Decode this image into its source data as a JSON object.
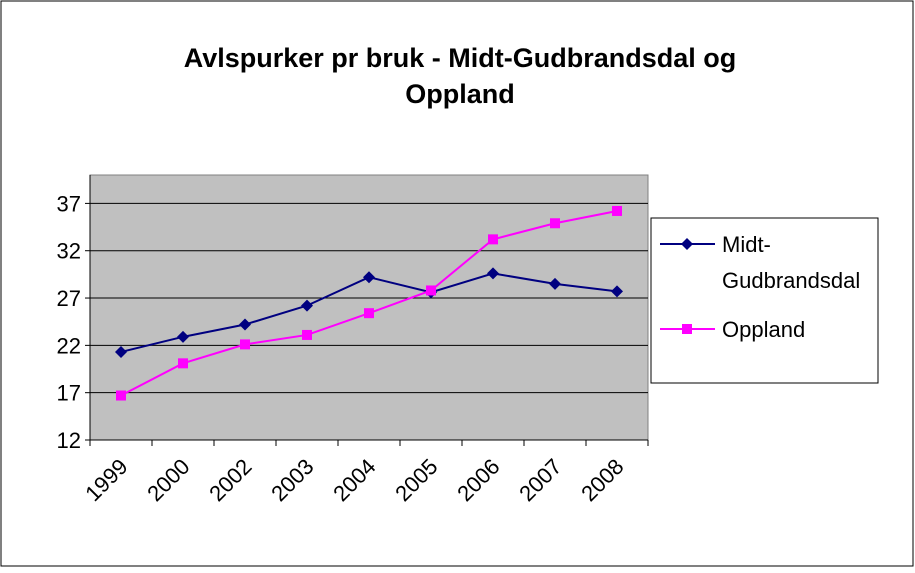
{
  "chart_data": {
    "type": "line",
    "title": "Avlspurker pr bruk - Midt-Gudbrandsdal og Oppland",
    "categories": [
      "1999",
      "2000",
      "2002",
      "2003",
      "2004",
      "2005",
      "2006",
      "2007",
      "2008"
    ],
    "series": [
      {
        "name": "Midt-Gudbrandsdal",
        "color": "#000080",
        "marker": "diamond",
        "values": [
          21.3,
          22.9,
          24.2,
          26.2,
          29.2,
          27.6,
          29.6,
          28.5,
          27.7
        ]
      },
      {
        "name": "Oppland",
        "color": "#ff00ff",
        "marker": "square",
        "values": [
          16.7,
          20.1,
          22.1,
          23.1,
          25.4,
          27.8,
          33.2,
          34.9,
          36.2
        ]
      }
    ],
    "ylim": [
      12,
      40
    ],
    "yticks": [
      12,
      17,
      22,
      27,
      32,
      37
    ],
    "grid": true,
    "plot_background": "#c0c0c0",
    "legend": "right"
  }
}
